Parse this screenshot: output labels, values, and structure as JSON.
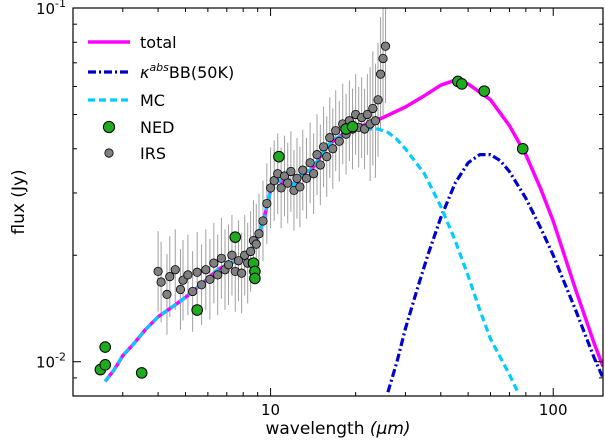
{
  "chart_data": {
    "type": "line",
    "xscale": "log",
    "yscale": "log",
    "xlim": [
      2.0,
      150
    ],
    "ylim": [
      0.008,
      0.1
    ],
    "xlabel": "wavelength",
    "xlabel_unit": "(μm)",
    "ylabel": "flux (Jy)",
    "title": "",
    "grid": false,
    "legend_position": "top-left",
    "x_tick_labels": [
      {
        "value": 10,
        "label": "10"
      },
      {
        "value": 100,
        "label": "100"
      }
    ],
    "y_tick_labels": [
      {
        "value": 0.1,
        "base": "10",
        "exp": "-1"
      },
      {
        "value": 0.01,
        "base": "10",
        "exp": "-2"
      }
    ],
    "legend": [
      {
        "key": "total",
        "label": "total"
      },
      {
        "key": "bb",
        "label_prefix": "κ",
        "label_sup": "abs",
        "label_rest": "BB(50K)"
      },
      {
        "key": "mc",
        "label": "MC"
      },
      {
        "key": "ned",
        "label": "NED"
      },
      {
        "key": "irs",
        "label": "IRS"
      }
    ],
    "series": [
      {
        "name": "total",
        "color": "#ff00ff",
        "style": "solid",
        "points": [
          [
            2.6,
            0.0088
          ],
          [
            2.8,
            0.0095
          ],
          [
            3.0,
            0.0104
          ],
          [
            3.3,
            0.0113
          ],
          [
            3.6,
            0.0123
          ],
          [
            4.0,
            0.0134
          ],
          [
            4.5,
            0.0143
          ],
          [
            5.0,
            0.0152
          ],
          [
            5.5,
            0.0162
          ],
          [
            6.0,
            0.0172
          ],
          [
            6.5,
            0.0182
          ],
          [
            7.0,
            0.0188
          ],
          [
            7.5,
            0.0192
          ],
          [
            7.8,
            0.0194
          ],
          [
            8.1,
            0.0196
          ],
          [
            8.4,
            0.0203
          ],
          [
            8.7,
            0.0212
          ],
          [
            9.0,
            0.0225
          ],
          [
            9.5,
            0.0255
          ],
          [
            10.0,
            0.0305
          ],
          [
            10.5,
            0.033
          ],
          [
            11.0,
            0.032
          ],
          [
            11.5,
            0.033
          ],
          [
            12.0,
            0.0315
          ],
          [
            12.5,
            0.0325
          ],
          [
            13.0,
            0.034
          ],
          [
            14.0,
            0.035
          ],
          [
            15.0,
            0.038
          ],
          [
            16.0,
            0.041
          ],
          [
            17.0,
            0.0425
          ],
          [
            18.0,
            0.044
          ],
          [
            19.0,
            0.0455
          ],
          [
            20.0,
            0.046
          ],
          [
            22.0,
            0.047
          ],
          [
            25.0,
            0.049
          ],
          [
            30.0,
            0.0525
          ],
          [
            35.0,
            0.0565
          ],
          [
            40.0,
            0.0605
          ],
          [
            45.0,
            0.0625
          ],
          [
            50.0,
            0.061
          ],
          [
            60.0,
            0.055
          ],
          [
            70.0,
            0.0465
          ],
          [
            80.0,
            0.0385
          ],
          [
            90.0,
            0.031
          ],
          [
            100.0,
            0.025
          ],
          [
            120.0,
            0.016
          ],
          [
            140.0,
            0.0112
          ],
          [
            150.0,
            0.0097
          ]
        ]
      },
      {
        "name": "κ^abs BB(50K)",
        "color": "#0000cc",
        "style": "dashdot",
        "points": [
          [
            26,
            0.0082
          ],
          [
            28,
            0.01
          ],
          [
            30,
            0.0124
          ],
          [
            33,
            0.016
          ],
          [
            36,
            0.02
          ],
          [
            40,
            0.0255
          ],
          [
            45,
            0.032
          ],
          [
            50,
            0.0365
          ],
          [
            55,
            0.0385
          ],
          [
            60,
            0.0385
          ],
          [
            65,
            0.037
          ],
          [
            70,
            0.0345
          ],
          [
            80,
            0.029
          ],
          [
            90,
            0.024
          ],
          [
            100,
            0.02
          ],
          [
            120,
            0.014
          ],
          [
            140,
            0.0102
          ],
          [
            150,
            0.009
          ]
        ]
      },
      {
        "name": "MC",
        "color": "#00ccff",
        "style": "dashed",
        "points": [
          [
            2.6,
            0.0088
          ],
          [
            2.8,
            0.0095
          ],
          [
            3.0,
            0.0104
          ],
          [
            3.3,
            0.0113
          ],
          [
            3.6,
            0.0123
          ],
          [
            4.0,
            0.0134
          ],
          [
            4.5,
            0.0143
          ],
          [
            5.0,
            0.0152
          ],
          [
            5.5,
            0.0162
          ],
          [
            6.0,
            0.0172
          ],
          [
            6.5,
            0.0182
          ],
          [
            7.0,
            0.0188
          ],
          [
            7.5,
            0.0192
          ],
          [
            7.8,
            0.0194
          ],
          [
            8.1,
            0.0196
          ],
          [
            8.4,
            0.0203
          ],
          [
            8.7,
            0.0212
          ],
          [
            9.0,
            0.0225
          ],
          [
            9.5,
            0.0255
          ],
          [
            10.0,
            0.0305
          ],
          [
            10.5,
            0.033
          ],
          [
            11.0,
            0.032
          ],
          [
            11.5,
            0.033
          ],
          [
            12.0,
            0.0315
          ],
          [
            12.5,
            0.0325
          ],
          [
            13.0,
            0.034
          ],
          [
            14.0,
            0.035
          ],
          [
            15.0,
            0.038
          ],
          [
            16.0,
            0.041
          ],
          [
            17.0,
            0.0425
          ],
          [
            18.0,
            0.044
          ],
          [
            19.0,
            0.045
          ],
          [
            20.0,
            0.0452
          ],
          [
            22.0,
            0.0455
          ],
          [
            24.0,
            0.0455
          ],
          [
            26.0,
            0.0445
          ],
          [
            28.0,
            0.0425
          ],
          [
            30.0,
            0.04
          ],
          [
            35.0,
            0.034
          ],
          [
            40.0,
            0.0275
          ],
          [
            45.0,
            0.022
          ],
          [
            50.0,
            0.0175
          ],
          [
            55.0,
            0.014
          ],
          [
            60.0,
            0.0116
          ],
          [
            70.0,
            0.0092
          ],
          [
            75.0,
            0.0082
          ]
        ]
      }
    ],
    "ned_points": [
      [
        2.5,
        0.0095
      ],
      [
        2.6,
        0.011
      ],
      [
        2.6,
        0.0098
      ],
      [
        3.5,
        0.0093
      ],
      [
        5.5,
        0.014
      ],
      [
        7.5,
        0.0225
      ],
      [
        8.7,
        0.019
      ],
      [
        8.8,
        0.018
      ],
      [
        8.8,
        0.0172
      ],
      [
        10.7,
        0.038
      ],
      [
        18.5,
        0.0455
      ],
      [
        19.5,
        0.0462
      ],
      [
        46.0,
        0.062
      ],
      [
        47.5,
        0.061
      ],
      [
        57.0,
        0.0582
      ],
      [
        78.0,
        0.04
      ]
    ],
    "irs_points": [
      [
        4.0,
        0.018
      ],
      [
        4.1,
        0.0168
      ],
      [
        4.3,
        0.0155
      ],
      [
        4.4,
        0.0174
      ],
      [
        4.6,
        0.0182
      ],
      [
        4.8,
        0.016
      ],
      [
        4.9,
        0.017
      ],
      [
        5.1,
        0.0176
      ],
      [
        5.3,
        0.0158
      ],
      [
        5.5,
        0.0179
      ],
      [
        5.7,
        0.0165
      ],
      [
        5.9,
        0.0182
      ],
      [
        6.1,
        0.0171
      ],
      [
        6.3,
        0.019
      ],
      [
        6.5,
        0.0176
      ],
      [
        6.7,
        0.0196
      ],
      [
        6.9,
        0.0182
      ],
      [
        7.1,
        0.0188
      ],
      [
        7.3,
        0.02
      ],
      [
        7.5,
        0.018
      ],
      [
        7.7,
        0.0193
      ],
      [
        7.9,
        0.0178
      ],
      [
        8.1,
        0.02
      ],
      [
        8.3,
        0.019
      ],
      [
        8.5,
        0.0205
      ],
      [
        8.7,
        0.022
      ],
      [
        8.9,
        0.0215
      ],
      [
        9.1,
        0.023
      ],
      [
        9.4,
        0.025
      ],
      [
        9.7,
        0.028
      ],
      [
        10.0,
        0.031
      ],
      [
        10.3,
        0.0325
      ],
      [
        10.6,
        0.034
      ],
      [
        10.9,
        0.031
      ],
      [
        11.2,
        0.0335
      ],
      [
        11.5,
        0.032
      ],
      [
        11.8,
        0.0345
      ],
      [
        12.1,
        0.0305
      ],
      [
        12.4,
        0.033
      ],
      [
        12.7,
        0.0312
      ],
      [
        13.0,
        0.0348
      ],
      [
        13.4,
        0.033
      ],
      [
        13.8,
        0.0365
      ],
      [
        14.2,
        0.034
      ],
      [
        14.6,
        0.0385
      ],
      [
        15.0,
        0.036
      ],
      [
        15.4,
        0.0405
      ],
      [
        15.8,
        0.038
      ],
      [
        16.2,
        0.043
      ],
      [
        16.6,
        0.04
      ],
      [
        17.0,
        0.045
      ],
      [
        17.5,
        0.042
      ],
      [
        18.0,
        0.047
      ],
      [
        18.5,
        0.044
      ],
      [
        19.0,
        0.048
      ],
      [
        19.5,
        0.0455
      ],
      [
        20.0,
        0.05
      ],
      [
        20.5,
        0.046
      ],
      [
        21.0,
        0.049
      ],
      [
        21.5,
        0.0455
      ],
      [
        22.0,
        0.05
      ],
      [
        22.5,
        0.047
      ],
      [
        23.0,
        0.052
      ],
      [
        23.5,
        0.048
      ],
      [
        24.0,
        0.055
      ],
      [
        24.5,
        0.065
      ],
      [
        25.0,
        0.072
      ],
      [
        25.5,
        0.078
      ]
    ]
  }
}
